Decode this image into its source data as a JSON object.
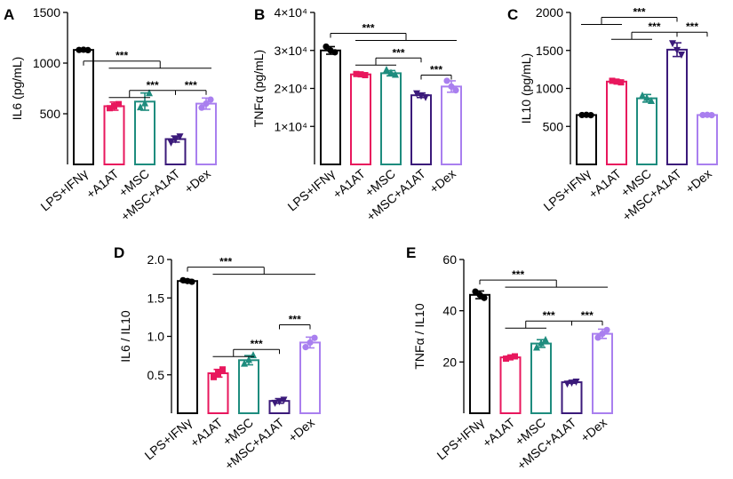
{
  "colors": {
    "LPS+IFNγ": "#000000",
    "+A1AT": "#e8175d",
    "+MSC": "#1e8c7e",
    "+MSC+A1AT": "#3b1a7a",
    "+Dex": "#a97fef"
  },
  "chart_data": [
    {
      "panel": "A",
      "type": "bar",
      "ylabel": "IL6 (pg/mL)",
      "ylim": [
        0,
        1500
      ],
      "yticks": [
        500,
        1000,
        1500
      ],
      "ytick_labels": [
        "500",
        "1000",
        "1500"
      ],
      "categories": [
        "LPS+IFNγ",
        "+A1AT",
        "+MSC",
        "+MSC+A1AT",
        "+Dex"
      ],
      "values": [
        1130,
        575,
        620,
        250,
        600
      ],
      "errors": [
        10,
        40,
        85,
        30,
        55
      ],
      "points": [
        [
          1130,
          1128,
          1132
        ],
        [
          555,
          595,
          575
        ],
        [
          560,
          700,
          600
        ],
        [
          220,
          280,
          250
        ],
        [
          560,
          640,
          600
        ]
      ],
      "markers": [
        "circle",
        "square",
        "triangle",
        "triangle-down",
        "circle"
      ],
      "significance": [
        {
          "from": 0,
          "to": [
            1,
            4
          ],
          "y": 1020,
          "label": "***"
        },
        {
          "from": 3,
          "to": [
            1,
            2
          ],
          "y": 730,
          "label": "***"
        },
        {
          "from": 3,
          "to": [
            4
          ],
          "y": 730,
          "label": "***"
        }
      ]
    },
    {
      "panel": "B",
      "type": "bar",
      "ylabel": "TNFα (pg/mL)",
      "ylim": [
        0,
        40000
      ],
      "yticks": [
        10000,
        20000,
        30000,
        40000
      ],
      "ytick_labels": [
        "1×10⁴",
        "2×10⁴",
        "3×10⁴",
        "4×10⁴"
      ],
      "categories": [
        "LPS+IFNγ",
        "+A1AT",
        "+MSC",
        "+MSC+A1AT",
        "+Dex"
      ],
      "values": [
        30000,
        23700,
        24000,
        18200,
        20500
      ],
      "errors": [
        1000,
        300,
        700,
        600,
        1500
      ],
      "points": [
        [
          31000,
          29500,
          30000
        ],
        [
          23800,
          23500,
          23700
        ],
        [
          24800,
          23500,
          24000
        ],
        [
          18800,
          17800,
          18200
        ],
        [
          22000,
          19500,
          20500
        ]
      ],
      "markers": [
        "circle",
        "square",
        "triangle",
        "triangle-down",
        "circle"
      ],
      "significance": [
        {
          "from": 0,
          "to": [
            1,
            4
          ],
          "y": 34500,
          "label": "***"
        },
        {
          "from": 3,
          "to": [
            1,
            2
          ],
          "y": 28000,
          "label": "***"
        },
        {
          "from": 3,
          "to": [
            4
          ],
          "y": 23500,
          "label": "***"
        }
      ]
    },
    {
      "panel": "C",
      "type": "bar",
      "ylabel": "IL10 (pg/mL)",
      "ylim": [
        0,
        2000
      ],
      "yticks": [
        500,
        1000,
        1500,
        2000
      ],
      "ytick_labels": [
        "500",
        "1000",
        "1500",
        "2000"
      ],
      "categories": [
        "LPS+IFNγ",
        "+A1AT",
        "+MSC",
        "+MSC+A1AT",
        "+Dex"
      ],
      "values": [
        650,
        1090,
        870,
        1510,
        650
      ],
      "errors": [
        10,
        20,
        50,
        90,
        10
      ],
      "points": [
        [
          650,
          648,
          652
        ],
        [
          1100,
          1080,
          1090
        ],
        [
          900,
          830,
          870
        ],
        [
          1600,
          1450,
          1510
        ],
        [
          650,
          648,
          652
        ]
      ],
      "markers": [
        "circle",
        "square",
        "triangle",
        "triangle-down",
        "circle"
      ],
      "significance": [
        {
          "from": 3,
          "to": [
            0,
            1
          ],
          "y": 1935,
          "label": "***"
        },
        {
          "from": 3,
          "to": [
            1,
            2
          ],
          "y": 1740,
          "label": "***"
        },
        {
          "from": 3,
          "to": [
            4
          ],
          "y": 1740,
          "label": "***"
        }
      ]
    },
    {
      "panel": "D",
      "type": "bar",
      "ylabel": "IL6 / IL10",
      "ylim": [
        0,
        2.0
      ],
      "yticks": [
        0.5,
        1.0,
        1.5,
        2.0
      ],
      "ytick_labels": [
        "0.5",
        "1.0",
        "1.5",
        "2.0"
      ],
      "categories": [
        "LPS+IFNγ",
        "+A1AT",
        "+MSC",
        "+MSC+A1AT",
        "+Dex"
      ],
      "values": [
        1.72,
        0.52,
        0.69,
        0.16,
        0.92
      ],
      "errors": [
        0.02,
        0.05,
        0.06,
        0.03,
        0.07
      ],
      "points": [
        [
          1.73,
          1.71,
          1.72
        ],
        [
          0.47,
          0.57,
          0.52
        ],
        [
          0.64,
          0.75,
          0.69
        ],
        [
          0.14,
          0.18,
          0.16
        ],
        [
          0.86,
          0.98,
          0.92
        ]
      ],
      "markers": [
        "circle",
        "square",
        "triangle",
        "triangle-down",
        "circle"
      ],
      "significance": [
        {
          "from": 0,
          "to": [
            1,
            4
          ],
          "y": 1.9,
          "label": "***"
        },
        {
          "from": 3,
          "to": [
            1,
            2
          ],
          "y": 0.83,
          "label": "***"
        },
        {
          "from": 3,
          "to": [
            4
          ],
          "y": 1.15,
          "label": "***"
        }
      ]
    },
    {
      "panel": "E",
      "type": "bar",
      "ylabel": "TNFα / IL10",
      "ylim": [
        0,
        60
      ],
      "yticks": [
        20,
        40,
        60
      ],
      "ytick_labels": [
        "20",
        "40",
        "60"
      ],
      "categories": [
        "LPS+IFNγ",
        "+A1AT",
        "+MSC",
        "+MSC+A1AT",
        "+Dex"
      ],
      "values": [
        46.2,
        21.8,
        27.2,
        12.1,
        31.0
      ],
      "errors": [
        1.5,
        0.5,
        1.5,
        0.4,
        1.8
      ],
      "points": [
        [
          47.5,
          45,
          46.2
        ],
        [
          21.3,
          22.2,
          21.8
        ],
        [
          25.5,
          28.5,
          27.2
        ],
        [
          11.7,
          12.5,
          12.1
        ],
        [
          29.5,
          32.5,
          31
        ]
      ],
      "markers": [
        "circle",
        "square",
        "triangle",
        "triangle-down",
        "circle"
      ],
      "significance": [
        {
          "from": 0,
          "to": [
            1,
            4
          ],
          "y": 52,
          "label": "***"
        },
        {
          "from": 3,
          "to": [
            1,
            2
          ],
          "y": 36,
          "label": "***"
        },
        {
          "from": 3,
          "to": [
            4
          ],
          "y": 36,
          "label": "***"
        }
      ]
    }
  ]
}
